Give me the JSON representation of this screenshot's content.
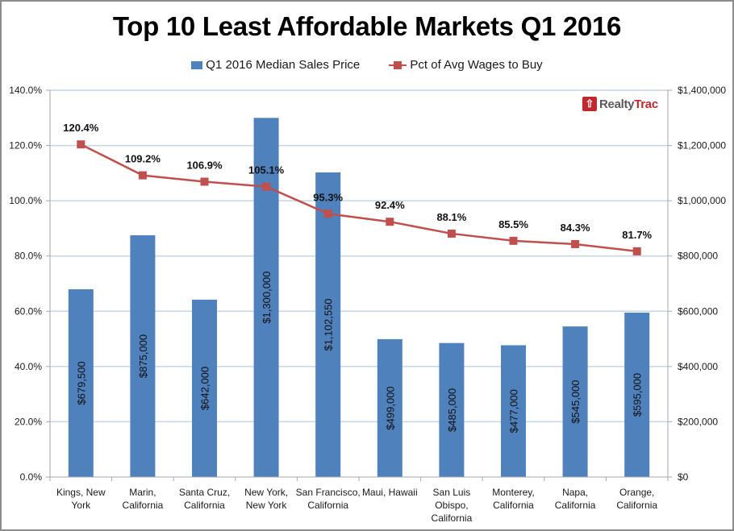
{
  "colors": {
    "bar": "#4f81bd",
    "line": "#c0504d",
    "grid": "#c5d5ea",
    "axis": "#a6a6a6",
    "text": "#1a1a1a",
    "logo_red": "#c0282d",
    "logo_gray": "#5a5a5a"
  },
  "logo": {
    "icon": "house-icon",
    "part1": "Realty",
    "part2": "Trac"
  },
  "chart_data": {
    "type": "bar",
    "title": "Top 10 Least Affordable Markets Q1 2016",
    "xlabel": "",
    "ylabel": "",
    "categories": [
      [
        "Kings, New",
        "York"
      ],
      [
        "Marin,",
        "California"
      ],
      [
        "Santa Cruz,",
        "California"
      ],
      [
        "New York,",
        "New York"
      ],
      [
        "San Francisco,",
        "California"
      ],
      [
        "Maui, Hawaii"
      ],
      [
        "San Luis",
        "Obispo,",
        "California"
      ],
      [
        "Monterey,",
        "California"
      ],
      [
        "Napa,",
        "California"
      ],
      [
        "Orange,",
        "California"
      ]
    ],
    "series": [
      {
        "name": "Q1 2016 Median Sales Price",
        "type": "bar",
        "axis": "right",
        "values": [
          679500,
          875000,
          642000,
          1300000,
          1102550,
          499000,
          485000,
          477000,
          545000,
          595000
        ],
        "labels": [
          "$679,500",
          "$875,000",
          "$642,000",
          "$1,300,000",
          "$1,102,550",
          "$499,000",
          "$485,000",
          "$477,000",
          "$545,000",
          "$595,000"
        ]
      },
      {
        "name": "Pct of Avg Wages to Buy",
        "type": "line",
        "axis": "left",
        "values": [
          120.4,
          109.2,
          106.9,
          105.1,
          95.3,
          92.4,
          88.1,
          85.5,
          84.3,
          81.7
        ],
        "labels": [
          "120.4%",
          "109.2%",
          "106.9%",
          "105.1%",
          "95.3%",
          "92.4%",
          "88.1%",
          "85.5%",
          "84.3%",
          "81.7%"
        ]
      }
    ],
    "y_left": {
      "range": [
        0,
        140
      ],
      "ticks": [
        0,
        20,
        40,
        60,
        80,
        100,
        120,
        140
      ],
      "tick_labels": [
        "0.0%",
        "20.0%",
        "40.0%",
        "60.0%",
        "80.0%",
        "100.0%",
        "120.0%",
        "140.0%"
      ]
    },
    "y_right": {
      "range": [
        0,
        1400000
      ],
      "ticks": [
        0,
        200000,
        400000,
        600000,
        800000,
        1000000,
        1200000,
        1400000
      ],
      "tick_labels": [
        "$0",
        "$200,000",
        "$400,000",
        "$600,000",
        "$800,000",
        "$1,000,000",
        "$1,200,000",
        "$1,400,000"
      ]
    },
    "grid": true,
    "legend": "top-center"
  }
}
